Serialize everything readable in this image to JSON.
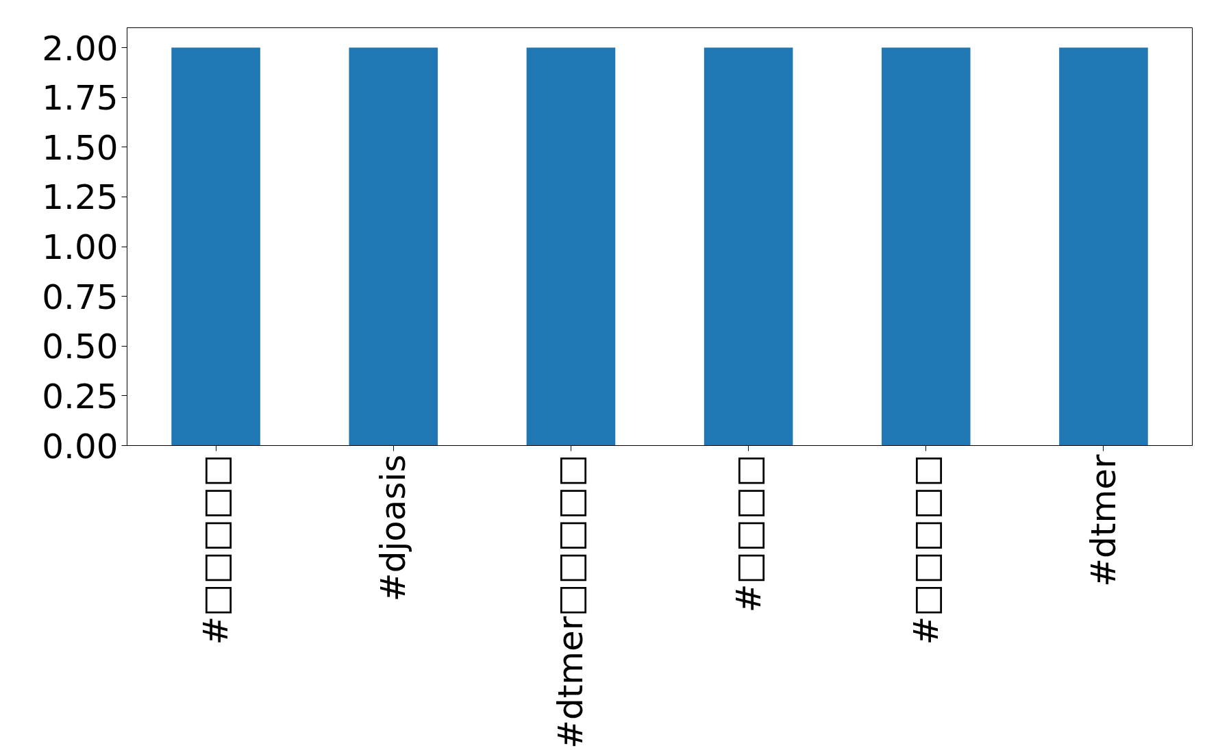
{
  "chart_data": {
    "type": "bar",
    "categories": [
      "#□□□□□",
      "#djoasis",
      "#dtmer□□□□□",
      "#□□□□",
      "#□□□□□",
      "#dtmer"
    ],
    "values": [
      2,
      2,
      2,
      2,
      2,
      2
    ],
    "color": "#1f77b4",
    "ylim": [
      0,
      2.1
    ],
    "yticks": [
      {
        "value": 0,
        "label": "0.00"
      },
      {
        "value": 0.25,
        "label": "0.25"
      },
      {
        "value": 0.5,
        "label": "0.50"
      },
      {
        "value": 0.75,
        "label": "0.75"
      },
      {
        "value": 1,
        "label": "1.00"
      },
      {
        "value": 1.25,
        "label": "1.25"
      },
      {
        "value": 1.5,
        "label": "1.50"
      },
      {
        "value": 1.75,
        "label": "1.75"
      },
      {
        "value": 2,
        "label": "2.00"
      }
    ],
    "grid": false
  }
}
